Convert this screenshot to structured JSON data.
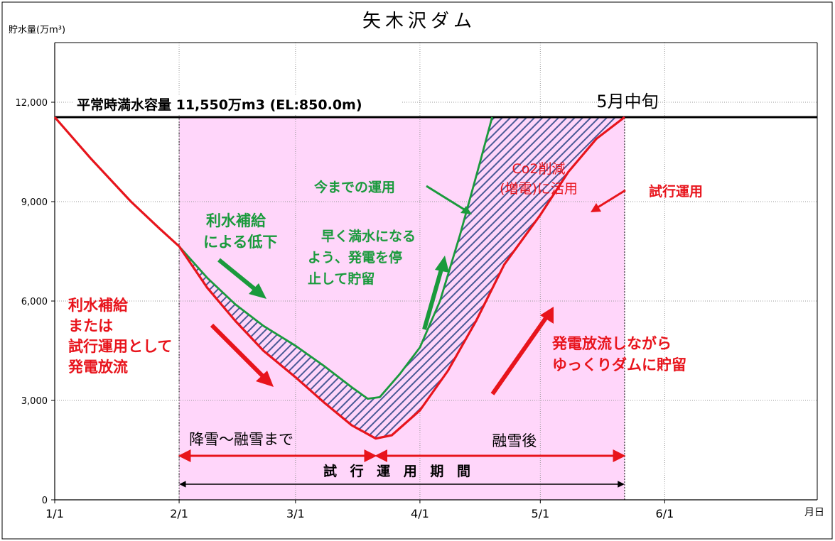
{
  "chart_data": {
    "type": "line",
    "title": "矢木沢ダム",
    "ylabel": "貯水量(万m³)",
    "xlabel": "月日",
    "ylim": [
      0,
      13800
    ],
    "yticks": [
      {
        "value": 0,
        "label": "0"
      },
      {
        "value": 3000,
        "label": "3,000"
      },
      {
        "value": 6000,
        "label": "6,000"
      },
      {
        "value": 9000,
        "label": "9,000"
      },
      {
        "value": 12000,
        "label": "12,000"
      }
    ],
    "xticks": [
      {
        "value": "01-01",
        "label": "1/1"
      },
      {
        "value": "02-01",
        "label": "2/1"
      },
      {
        "value": "03-01",
        "label": "3/1"
      },
      {
        "value": "04-01",
        "label": "4/1"
      },
      {
        "value": "05-01",
        "label": "5/1"
      },
      {
        "value": "06-01",
        "label": "6/1"
      }
    ],
    "grid": true,
    "full_capacity": {
      "value": 11550,
      "label": "平常時満水容量 11,550万m3 (EL:850.0m)"
    },
    "trial_period": {
      "start": "02-01",
      "end": "05-22",
      "label": "試 行 運 用 期 間"
    },
    "phases": [
      {
        "label": "降雪～融雪まで",
        "start": "02-01",
        "end": "03-21"
      },
      {
        "label": "融雪後",
        "start": "03-21",
        "end": "05-22"
      }
    ],
    "series": [
      {
        "name": "今までの運用",
        "color": "#1a9a3c",
        "points": [
          {
            "x": "01-01",
            "y": 11550
          },
          {
            "x": "01-10",
            "y": 10300
          },
          {
            "x": "01-20",
            "y": 9000
          },
          {
            "x": "01-27",
            "y": 8200
          },
          {
            "x": "02-01",
            "y": 7650
          },
          {
            "x": "02-08",
            "y": 6700
          },
          {
            "x": "02-15",
            "y": 5900
          },
          {
            "x": "02-22",
            "y": 5250
          },
          {
            "x": "03-01",
            "y": 4650
          },
          {
            "x": "03-08",
            "y": 4050
          },
          {
            "x": "03-15",
            "y": 3400
          },
          {
            "x": "03-19",
            "y": 3050
          },
          {
            "x": "03-22",
            "y": 3100
          },
          {
            "x": "03-27",
            "y": 3800
          },
          {
            "x": "04-01",
            "y": 4600
          },
          {
            "x": "04-06",
            "y": 6000
          },
          {
            "x": "04-11",
            "y": 8000
          },
          {
            "x": "04-16",
            "y": 10200
          },
          {
            "x": "04-19",
            "y": 11550
          }
        ]
      },
      {
        "name": "試行運用",
        "color": "#e8141c",
        "points": [
          {
            "x": "01-01",
            "y": 11550
          },
          {
            "x": "01-10",
            "y": 10300
          },
          {
            "x": "01-20",
            "y": 9000
          },
          {
            "x": "01-27",
            "y": 8200
          },
          {
            "x": "02-01",
            "y": 7650
          },
          {
            "x": "02-08",
            "y": 6400
          },
          {
            "x": "02-15",
            "y": 5400
          },
          {
            "x": "02-22",
            "y": 4500
          },
          {
            "x": "03-01",
            "y": 3700
          },
          {
            "x": "03-08",
            "y": 2950
          },
          {
            "x": "03-15",
            "y": 2250
          },
          {
            "x": "03-21",
            "y": 1850
          },
          {
            "x": "03-25",
            "y": 1950
          },
          {
            "x": "04-01",
            "y": 2700
          },
          {
            "x": "04-08",
            "y": 3900
          },
          {
            "x": "04-15",
            "y": 5400
          },
          {
            "x": "04-22",
            "y": 7100
          },
          {
            "x": "05-01",
            "y": 8600
          },
          {
            "x": "05-08",
            "y": 9900
          },
          {
            "x": "05-15",
            "y": 10900
          },
          {
            "x": "05-22",
            "y": 11550
          }
        ]
      }
    ],
    "annotations": [
      {
        "id": "mid-may",
        "text": "5月中旬",
        "color": "#000000"
      },
      {
        "id": "existing",
        "text": "今までの運用",
        "color": "#1a9a3c"
      },
      {
        "id": "co2",
        "lines": [
          "Co2削減",
          "(増電)に活用"
        ],
        "color": "#e8141c"
      },
      {
        "id": "trial",
        "text": "試行運用",
        "color": "#e8141c"
      },
      {
        "id": "supply-green",
        "lines": [
          "利水補給",
          "による低下"
        ],
        "color": "#1a9a3c"
      },
      {
        "id": "early-fill",
        "lines": [
          "早く満水になる",
          "よう、発電を停",
          "止して貯留"
        ],
        "color": "#1a9a3c"
      },
      {
        "id": "supply-red",
        "lines": [
          "利水補給",
          "または",
          "試行運用として",
          "発電放流"
        ],
        "color": "#e8141c"
      },
      {
        "id": "slow-fill",
        "lines": [
          "発電放流しながら",
          "ゆっくりダムに貯留"
        ],
        "color": "#e8141c"
      }
    ],
    "colors": {
      "trial_region": "#ffd6fa",
      "hatch": "#4a5a96",
      "existing": "#1a9a3c",
      "trial": "#e8141c"
    }
  }
}
